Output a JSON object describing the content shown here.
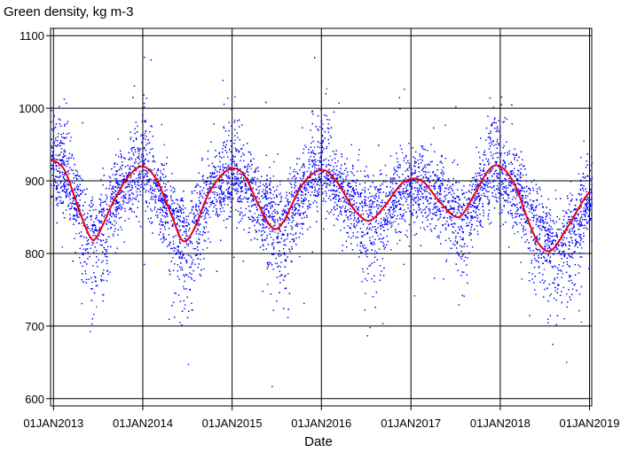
{
  "chart_data": {
    "type": "scatter",
    "title": "Green density, kg m-3",
    "xlabel": "Date",
    "ylabel": "Green density, kg m-3",
    "xlim": [
      "2012-12-20",
      "2019-01-10"
    ],
    "ylim": [
      590,
      1110
    ],
    "x_ticks": [
      "01JAN2013",
      "01JAN2014",
      "01JAN2015",
      "01JAN2016",
      "01JAN2017",
      "01JAN2018",
      "01JAN2019"
    ],
    "y_ticks": [
      600,
      700,
      800,
      900,
      1000,
      1100
    ],
    "grid": true,
    "colors": {
      "points": "#0000ff",
      "fit": "#e8000b",
      "grid": "#000000"
    },
    "series": [
      {
        "type": "scatter",
        "note_points": "dense cloud of individual observations; approx. 12000 points, spread ~±60 kg m-3 around the seasonal mean with winter highs to ~1090 and summer lows to ~610",
        "seasonal_mean": [
          {
            "x": "2013-01-01",
            "y": 925
          },
          {
            "x": "2013-03-01",
            "y": 905
          },
          {
            "x": "2013-05-15",
            "y": 830
          },
          {
            "x": "2013-06-20",
            "y": 820
          },
          {
            "x": "2013-10-01",
            "y": 890
          },
          {
            "x": "2014-01-01",
            "y": 920
          },
          {
            "x": "2014-04-15",
            "y": 860
          },
          {
            "x": "2014-07-01",
            "y": 815
          },
          {
            "x": "2014-10-15",
            "y": 890
          },
          {
            "x": "2015-01-01",
            "y": 915
          },
          {
            "x": "2015-04-01",
            "y": 880
          },
          {
            "x": "2015-07-15",
            "y": 835
          },
          {
            "x": "2015-11-01",
            "y": 895
          },
          {
            "x": "2016-01-01",
            "y": 915
          },
          {
            "x": "2016-04-01",
            "y": 880
          },
          {
            "x": "2016-08-01",
            "y": 845
          },
          {
            "x": "2016-11-01",
            "y": 880
          },
          {
            "x": "2017-01-01",
            "y": 900
          },
          {
            "x": "2017-04-01",
            "y": 885
          },
          {
            "x": "2017-08-01",
            "y": 850
          },
          {
            "x": "2017-12-01",
            "y": 920
          },
          {
            "x": "2018-03-01",
            "y": 890
          },
          {
            "x": "2018-06-01",
            "y": 840
          },
          {
            "x": "2018-08-15",
            "y": 805
          },
          {
            "x": "2018-11-01",
            "y": 840
          },
          {
            "x": "2019-01-01",
            "y": 880
          }
        ]
      },
      {
        "type": "line",
        "points": [
          {
            "x": "2012-12-20",
            "y": 930
          },
          {
            "x": "2013-02-15",
            "y": 915
          },
          {
            "x": "2013-04-15",
            "y": 860
          },
          {
            "x": "2013-06-01",
            "y": 822
          },
          {
            "x": "2013-07-01",
            "y": 825
          },
          {
            "x": "2013-09-01",
            "y": 870
          },
          {
            "x": "2013-11-01",
            "y": 905
          },
          {
            "x": "2014-01-01",
            "y": 920
          },
          {
            "x": "2014-03-01",
            "y": 900
          },
          {
            "x": "2014-05-01",
            "y": 850
          },
          {
            "x": "2014-06-15",
            "y": 817
          },
          {
            "x": "2014-08-01",
            "y": 835
          },
          {
            "x": "2014-10-01",
            "y": 885
          },
          {
            "x": "2014-12-15",
            "y": 915
          },
          {
            "x": "2015-02-15",
            "y": 910
          },
          {
            "x": "2015-04-15",
            "y": 870
          },
          {
            "x": "2015-06-15",
            "y": 835
          },
          {
            "x": "2015-08-01",
            "y": 845
          },
          {
            "x": "2015-10-15",
            "y": 895
          },
          {
            "x": "2016-01-01",
            "y": 915
          },
          {
            "x": "2016-03-01",
            "y": 900
          },
          {
            "x": "2016-05-15",
            "y": 860
          },
          {
            "x": "2016-07-15",
            "y": 845
          },
          {
            "x": "2016-09-15",
            "y": 865
          },
          {
            "x": "2016-12-01",
            "y": 898
          },
          {
            "x": "2017-02-15",
            "y": 900
          },
          {
            "x": "2017-05-01",
            "y": 870
          },
          {
            "x": "2017-07-15",
            "y": 850
          },
          {
            "x": "2017-09-15",
            "y": 880
          },
          {
            "x": "2017-11-15",
            "y": 915
          },
          {
            "x": "2018-01-01",
            "y": 920
          },
          {
            "x": "2018-03-01",
            "y": 895
          },
          {
            "x": "2018-05-01",
            "y": 840
          },
          {
            "x": "2018-06-15",
            "y": 810
          },
          {
            "x": "2018-08-01",
            "y": 805
          },
          {
            "x": "2018-10-01",
            "y": 835
          },
          {
            "x": "2018-12-01",
            "y": 870
          },
          {
            "x": "2019-01-01",
            "y": 885
          }
        ]
      }
    ]
  }
}
